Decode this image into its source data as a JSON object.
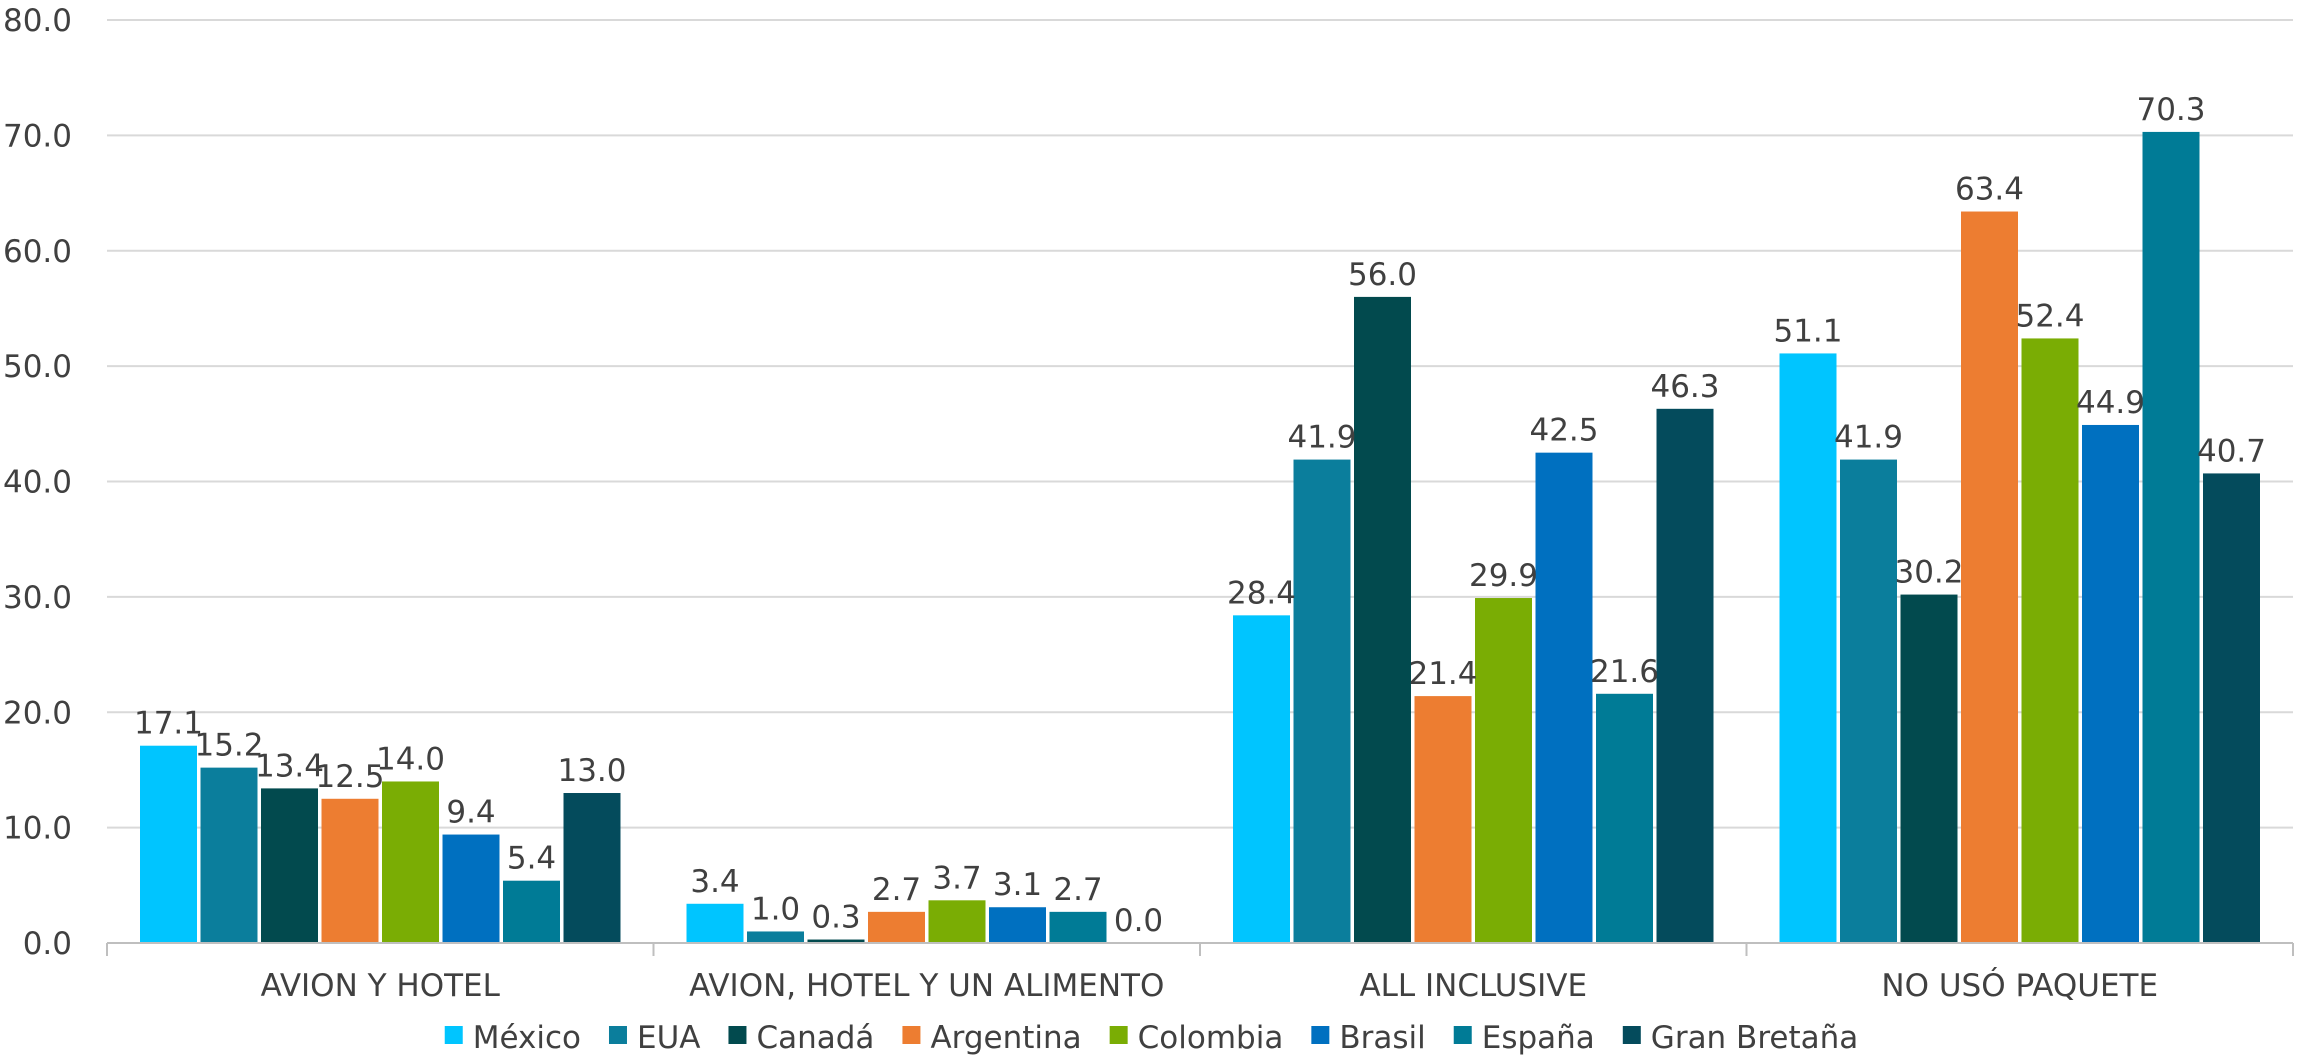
{
  "chart_data": {
    "type": "bar",
    "categories": [
      "AVION Y HOTEL",
      "AVION, HOTEL Y UN ALIMENTO",
      "ALL INCLUSIVE",
      "NO USÓ PAQUETE"
    ],
    "series": [
      {
        "name": "México",
        "color": "#00c5ff",
        "values": [
          17.1,
          3.4,
          28.4,
          51.1
        ]
      },
      {
        "name": "EUA",
        "color": "#0b7e9c",
        "values": [
          15.2,
          1.0,
          41.9,
          41.9
        ]
      },
      {
        "name": "Canadá",
        "color": "#024a4e",
        "values": [
          13.4,
          0.3,
          56.0,
          30.2
        ]
      },
      {
        "name": "Argentina",
        "color": "#ed7d31",
        "values": [
          12.5,
          2.7,
          21.4,
          63.4
        ]
      },
      {
        "name": "Colombia",
        "color": "#7aad04",
        "values": [
          14.0,
          3.7,
          29.9,
          52.4
        ]
      },
      {
        "name": "Brasil",
        "color": "#0070c0",
        "values": [
          9.4,
          3.1,
          42.5,
          44.9
        ]
      },
      {
        "name": "España",
        "color": "#007b96",
        "values": [
          5.4,
          2.7,
          21.6,
          70.3
        ]
      },
      {
        "name": "Gran Bretaña",
        "color": "#044b5c",
        "values": [
          13.0,
          0.0,
          46.3,
          40.7
        ]
      }
    ],
    "yticks": [
      "0.0",
      "10.0",
      "20.0",
      "30.0",
      "40.0",
      "50.0",
      "60.0",
      "70.0",
      "80.0"
    ],
    "ylim": [
      0,
      80
    ],
    "grid": true,
    "legend": "bottom"
  }
}
